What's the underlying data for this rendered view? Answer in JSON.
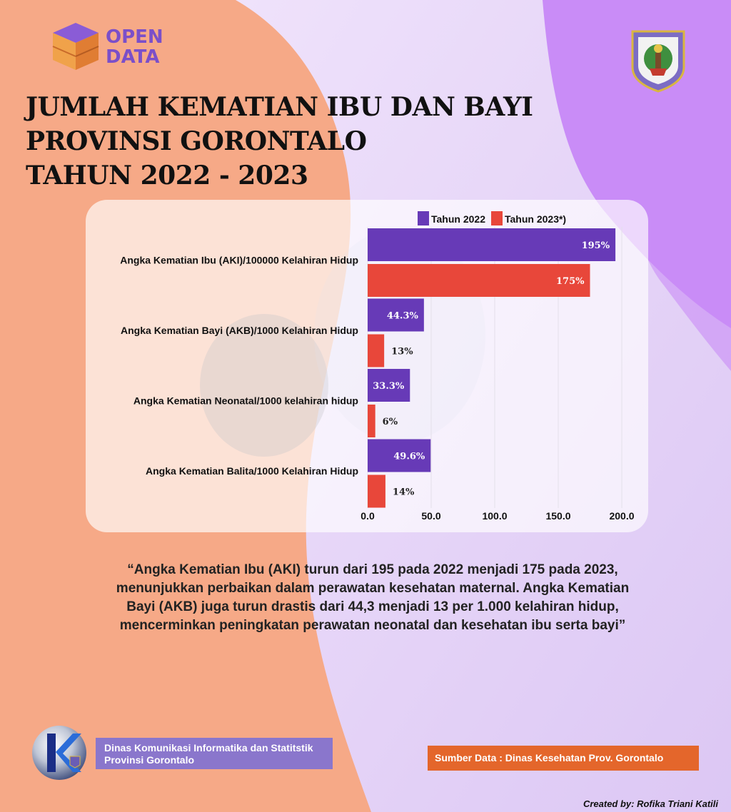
{
  "brand": {
    "logo_line1": "OPEN",
    "logo_line2": "DATA"
  },
  "title": {
    "line1": "JUMLAH KEMATIAN IBU DAN BAYI",
    "line2": "PROVINSI GORONTALO",
    "line3": "TAHUN 2022 - 2023"
  },
  "colors": {
    "series_2022": "#673ab7",
    "series_2023": "#e8473a",
    "accent_orange": "#e4662b",
    "accent_purple": "#8a76cc"
  },
  "chart_data": {
    "type": "bar",
    "orientation": "horizontal",
    "categories": [
      "Angka Kematian Ibu (AKI)/100000 Kelahiran Hidup",
      "Angka Kematian Bayi (AKB)/1000 Kelahiran Hidup",
      "Angka Kematian Neonatal/1000 kelahiran hidup",
      "Angka Kematian Balita/1000 Kelahiran Hidup"
    ],
    "series": [
      {
        "name": "Tahun 2022",
        "values": [
          195,
          44.3,
          33.3,
          49.6
        ],
        "labels": [
          "195%",
          "44.3%",
          "33.3%",
          "49.6%"
        ]
      },
      {
        "name": "Tahun 2023*)",
        "values": [
          175,
          13,
          6,
          14
        ],
        "labels": [
          "175%",
          "13%",
          "6%",
          "14%"
        ]
      }
    ],
    "xlim": [
      0,
      200
    ],
    "xticks": [
      "0.0",
      "50.0",
      "100.0",
      "150.0",
      "200.0"
    ],
    "legend": "top",
    "grid": true
  },
  "quote": "“Angka Kematian Ibu (AKI) turun dari 195 pada 2022 menjadi 175 pada 2023, menunjukkan perbaikan dalam perawatan kesehatan maternal. Angka Kematian Bayi (AKB) juga turun drastis dari 44,3 menjadi 13 per 1.000 kelahiran hidup, mencerminkan peningkatan perawatan neonatal dan kesehatan ibu serta bayi”",
  "footer": {
    "org_line1": "Dinas  Komunikasi Informatika dan Statitstik",
    "org_line2": "Provinsi Gorontalo",
    "source": "Sumber Data : Dinas Kesehatan Prov. Gorontalo",
    "credit": "Created by: Rofika Triani Katili"
  }
}
